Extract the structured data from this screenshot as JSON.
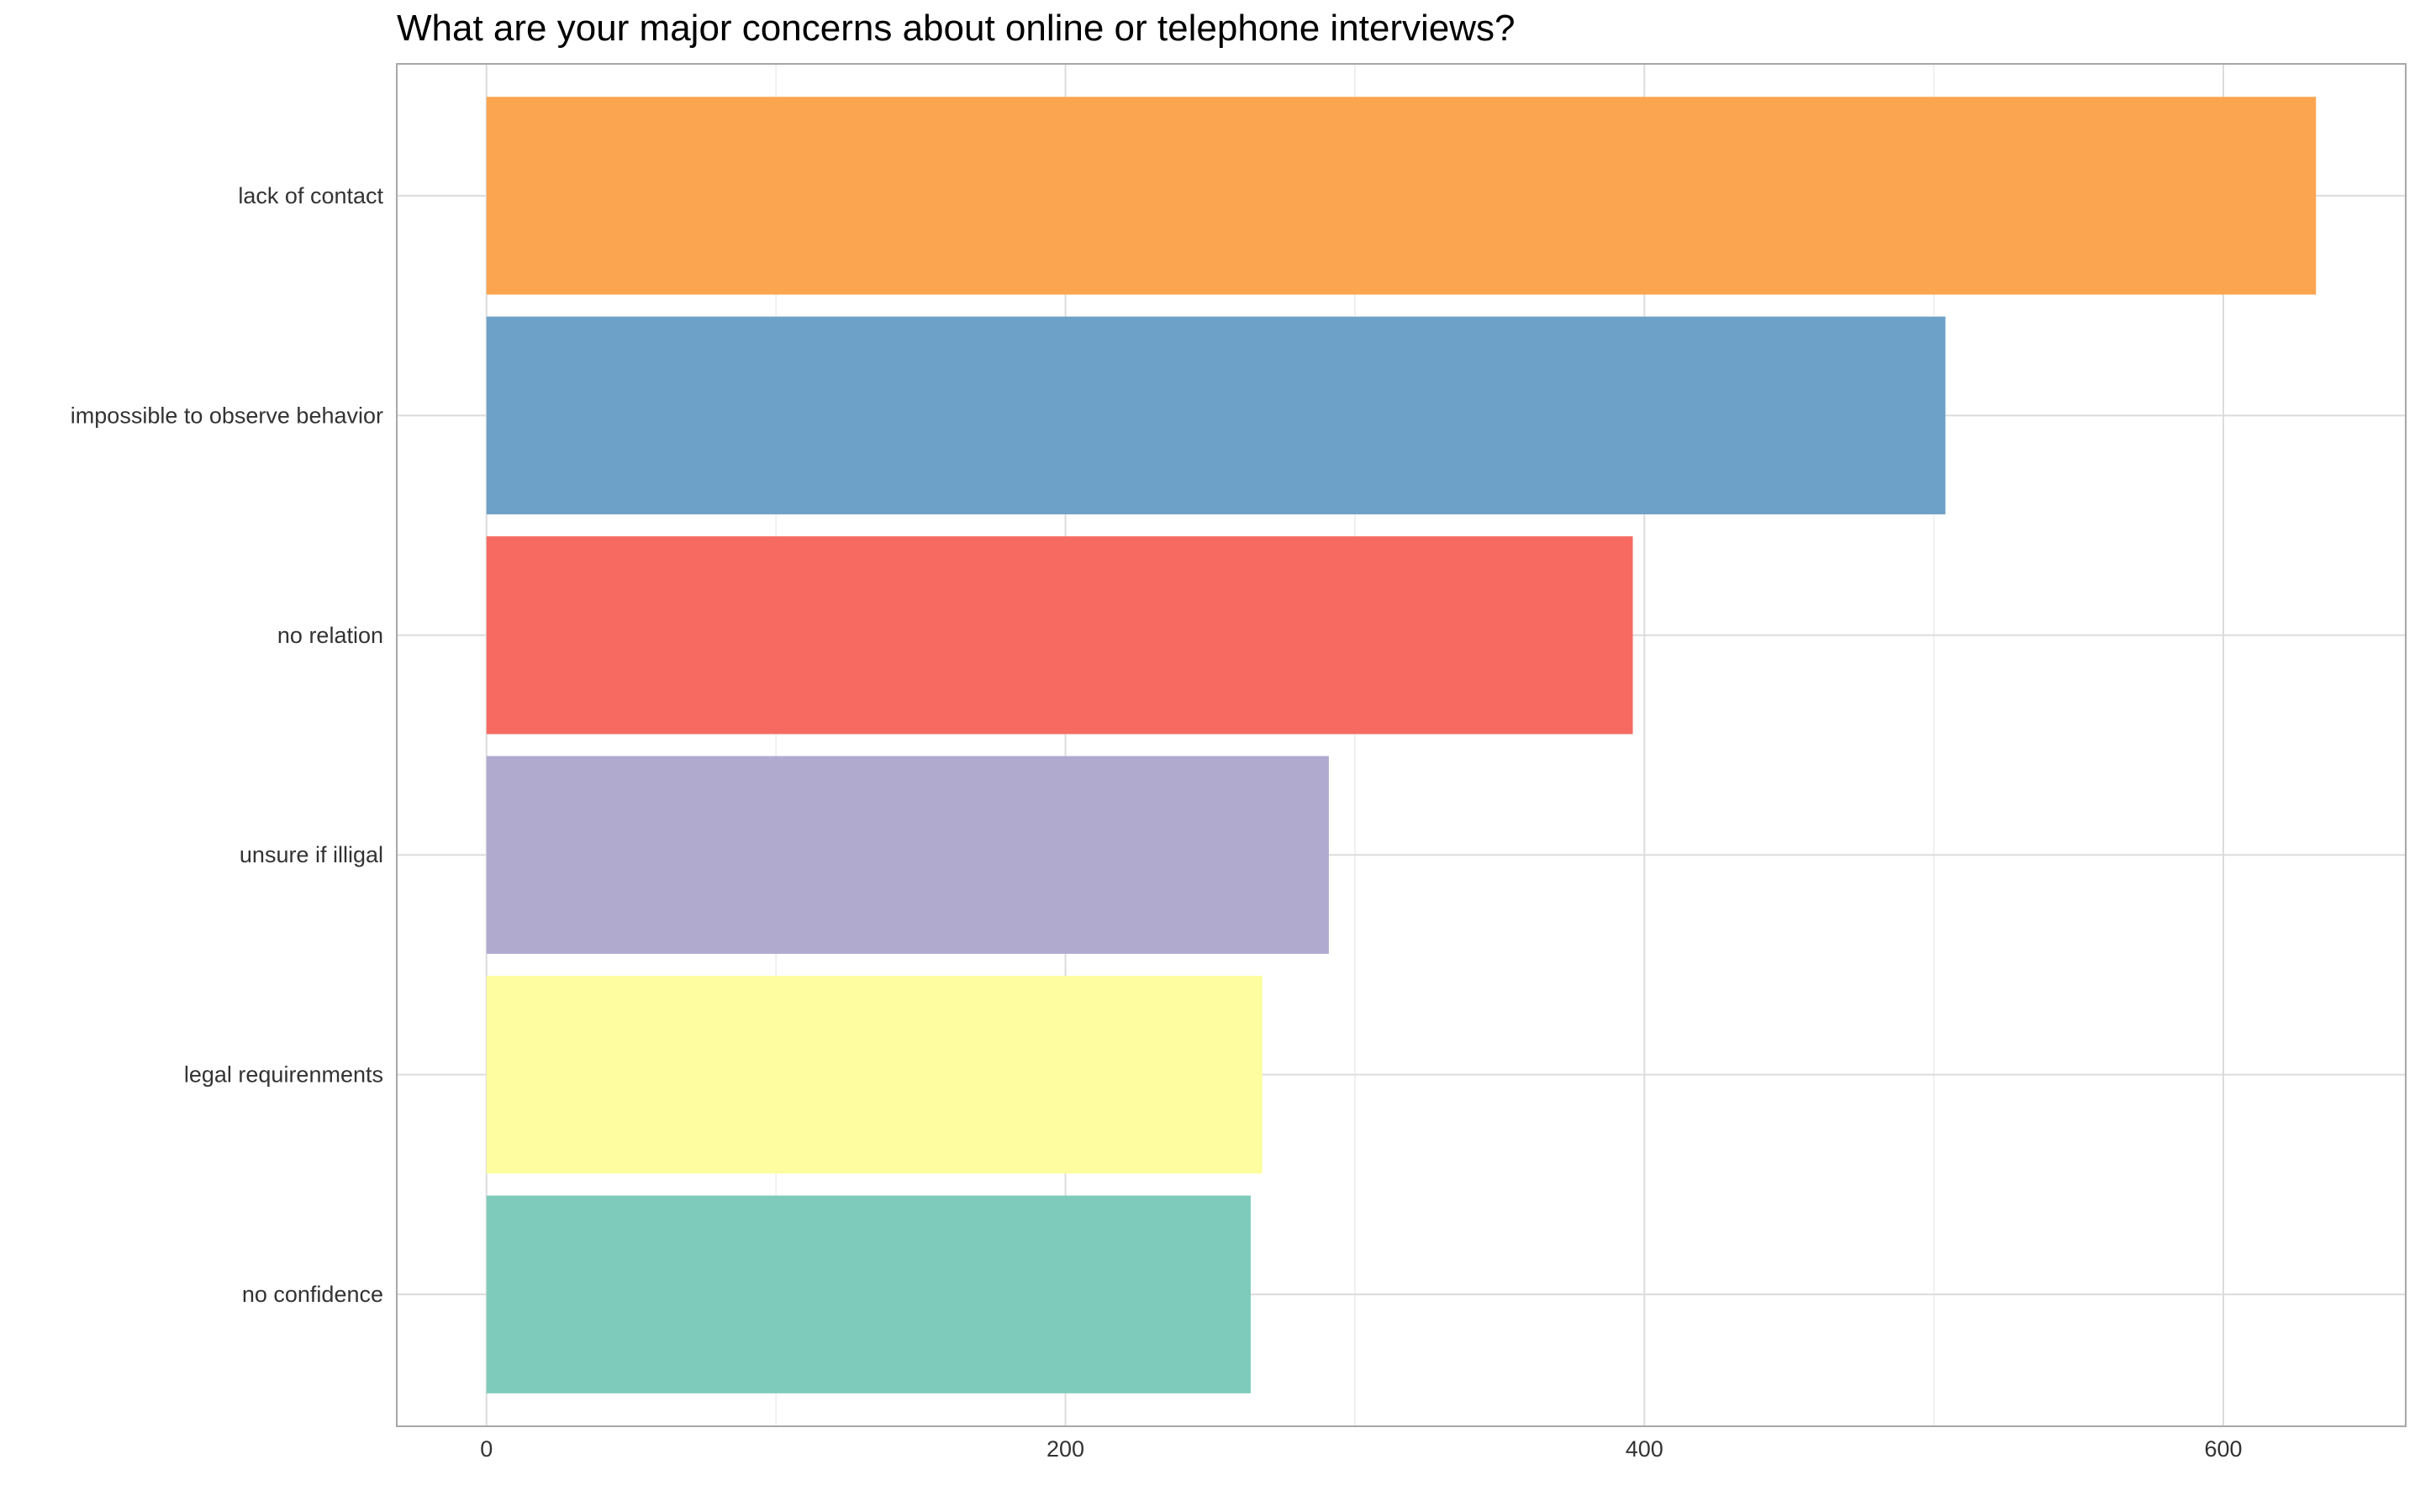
{
  "chart_data": {
    "type": "bar",
    "orientation": "horizontal",
    "title": "What are your major concerns about online or telephone interviews?",
    "xlabel": "",
    "ylabel": "",
    "categories": [
      "lack of contact",
      "impossible to observe behavior",
      "no relation",
      "unsure if illigal",
      "legal requirenments",
      "no confidence"
    ],
    "values": [
      632,
      504,
      396,
      291,
      268,
      264
    ],
    "colors": [
      "#FBA550",
      "#6EA1C8",
      "#F66A61",
      "#B0AACF",
      "#FEFEA1",
      "#7FCBBB"
    ],
    "xlim": [
      -31,
      663
    ],
    "xticks": [
      0,
      200,
      400,
      600
    ],
    "xtick_labels": [
      "0",
      "200",
      "400",
      "600"
    ],
    "grid": true,
    "legend": "none"
  }
}
